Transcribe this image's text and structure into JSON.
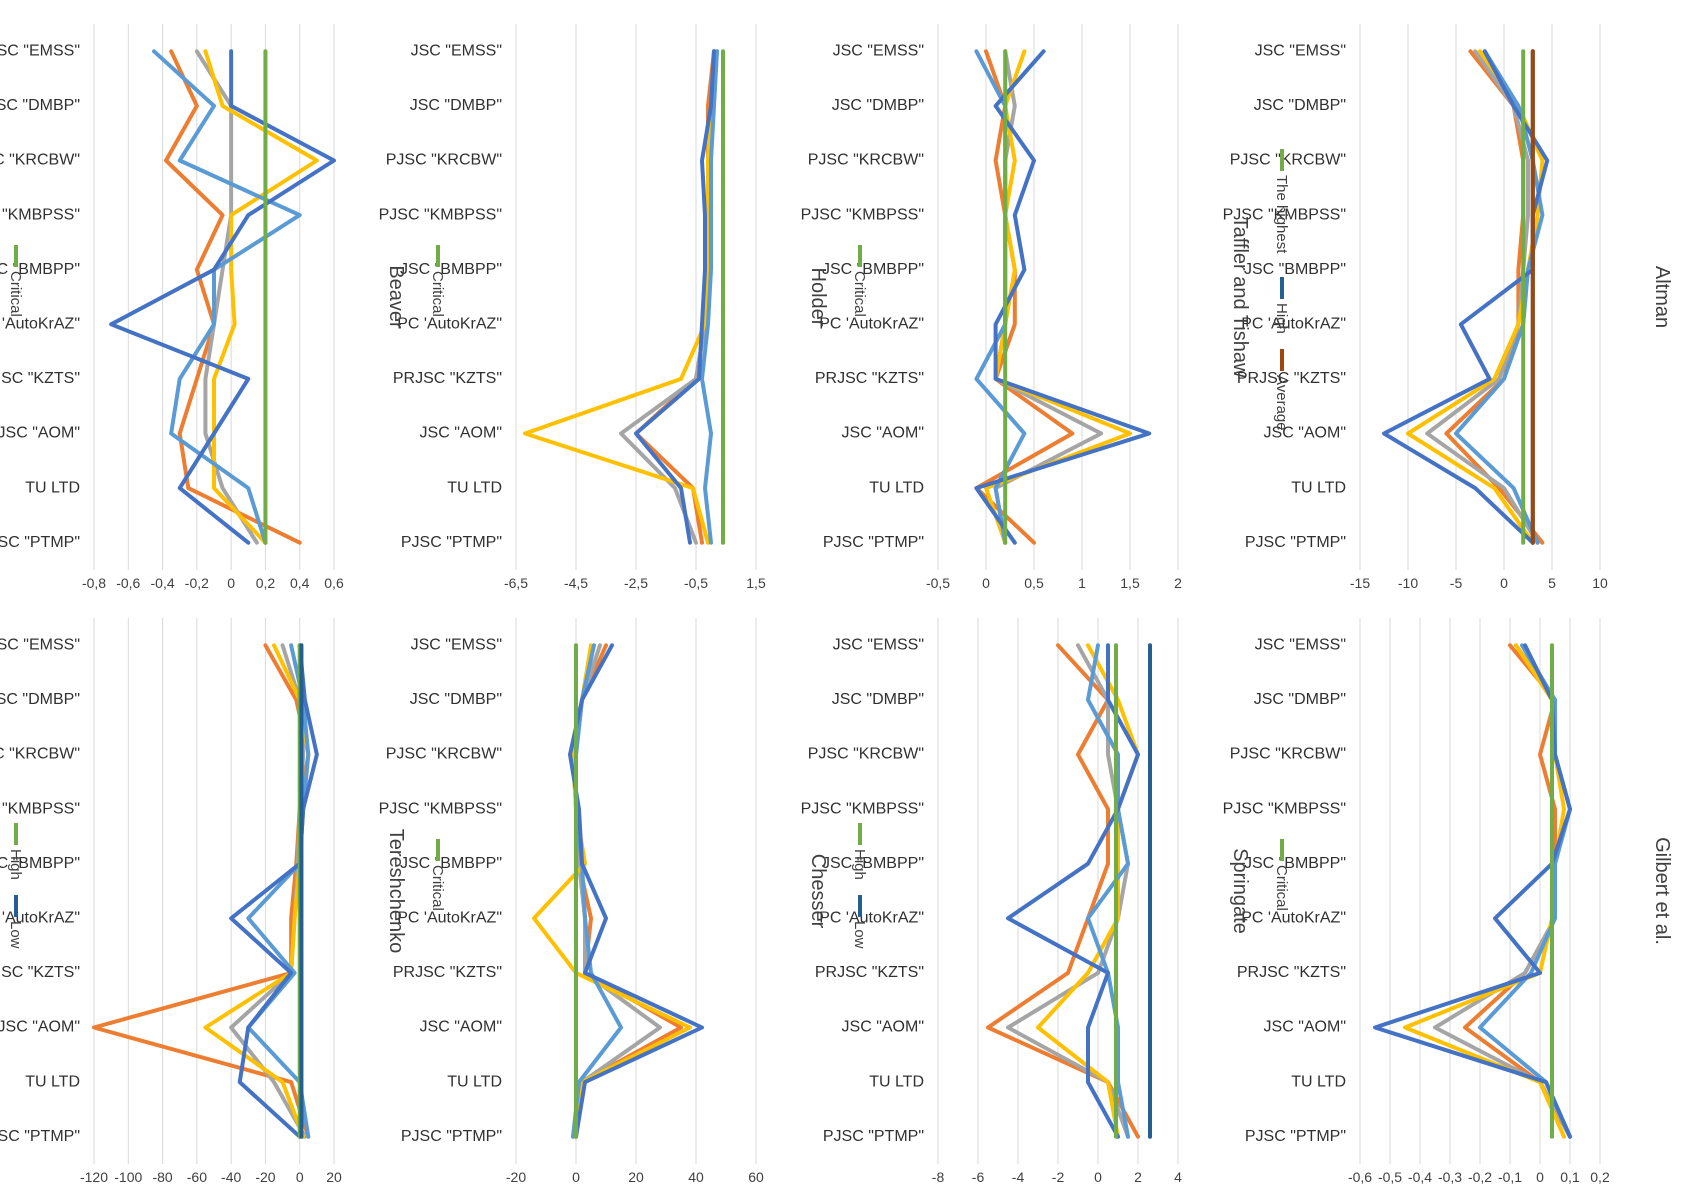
{
  "chart_data": [
    {
      "type": "line",
      "title": "Altman",
      "categories": [
        "JSC \"EMSS\"",
        "JSC \"DMBP\"",
        "PJSC \"KRCBW\"",
        "PJSC \"KMBPSS\"",
        "JSC \"BMBPP\"",
        "PC 'AutoKrAZ\"",
        "PRJSC \"KZTS\"",
        "JSC \"AOM\"",
        "TU LTD",
        "PJSC \"PTMP\""
      ],
      "ylim": [
        -15,
        10
      ],
      "ticks": [
        "-15",
        "-10",
        "-5",
        "0",
        "5",
        "10"
      ],
      "legend": [
        "The highest",
        "High",
        "Average"
      ],
      "series": [
        {
          "name": "The highest",
          "color": "#70ad47",
          "values": [
            2,
            2,
            2,
            2,
            2,
            2,
            2,
            2,
            2,
            2
          ]
        },
        {
          "name": "High",
          "color": "#255e91",
          "values": [
            3,
            3,
            3,
            3,
            3,
            3,
            3,
            3,
            3,
            3
          ]
        },
        {
          "name": "Average",
          "color": "#9e480e",
          "values": [
            3,
            3,
            3,
            3,
            3,
            3,
            3,
            3,
            3,
            3
          ]
        },
        {
          "color": "#ed7d31",
          "values": [
            -3.5,
            1,
            2,
            2,
            1.5,
            1.5,
            0,
            -6,
            -0.5,
            4
          ]
        },
        {
          "color": "#a5a5a5",
          "values": [
            -3,
            1,
            2.5,
            2.5,
            2,
            1.5,
            -0.5,
            -8,
            0,
            3.5
          ]
        },
        {
          "color": "#ffc000",
          "values": [
            -2.5,
            1.5,
            4,
            3.5,
            2.5,
            1.5,
            -1,
            -10,
            -1,
            3
          ]
        },
        {
          "color": "#5b9bd5",
          "values": [
            -2,
            1.5,
            3,
            4,
            2.5,
            2,
            0,
            -5,
            1,
            3.5
          ]
        },
        {
          "color": "#4472c4",
          "values": [
            -2,
            1,
            4.5,
            3,
            3,
            -4.5,
            -1.5,
            -12.5,
            -3,
            3
          ]
        }
      ]
    },
    {
      "type": "line",
      "title": "Taffler and Tishaw",
      "categories": [
        "JSC \"EMSS\"",
        "JSC \"DMBP\"",
        "PJSC \"KRCBW\"",
        "PJSC \"KMBPSS\"",
        "JSC \"BMBPP\"",
        "PC 'AutoKrAZ\"",
        "PRJSC \"KZTS\"",
        "JSC \"AOM\"",
        "TU LTD",
        "PJSC \"PTMP\""
      ],
      "ylim": [
        -0.5,
        2
      ],
      "ticks": [
        "-0,5",
        "0",
        "0,5",
        "1",
        "1,5",
        "2"
      ],
      "legend": [
        "Critical"
      ],
      "series": [
        {
          "name": "Critical",
          "color": "#70ad47",
          "values": [
            0.2,
            0.2,
            0.2,
            0.2,
            0.2,
            0.2,
            0.2,
            0.2,
            0.2,
            0.2
          ]
        },
        {
          "color": "#ed7d31",
          "values": [
            0,
            0.2,
            0.1,
            0.2,
            0.3,
            0.3,
            0.1,
            0.9,
            -0.1,
            0.5
          ]
        },
        {
          "color": "#a5a5a5",
          "values": [
            0.2,
            0.3,
            0.2,
            0.2,
            0.2,
            0.2,
            0.1,
            1.2,
            0.1,
            0.2
          ]
        },
        {
          "color": "#ffc000",
          "values": [
            0.4,
            0.2,
            0.3,
            0.2,
            0.3,
            0.2,
            0.1,
            1.5,
            0,
            0.2
          ]
        },
        {
          "color": "#5b9bd5",
          "values": [
            -0.1,
            0.2,
            0.2,
            0.2,
            0.2,
            0.2,
            -0.1,
            0.4,
            0.1,
            0.2
          ]
        },
        {
          "color": "#4472c4",
          "values": [
            0.6,
            0.1,
            0.5,
            0.3,
            0.4,
            0.1,
            0.1,
            1.7,
            -0.1,
            0.3
          ]
        }
      ]
    },
    {
      "type": "line",
      "title": "Holder",
      "categories": [
        "JSC \"EMSS\"",
        "JSC \"DMBP\"",
        "PJSC \"KRCBW\"",
        "PJSC \"KMBPSS\"",
        "JSC \"BMBPP\"",
        "PC 'AutoKrAZ\"",
        "PRJSC \"KZTS\"",
        "JSC \"AOM\"",
        "TU LTD",
        "PJSC \"PTMP\""
      ],
      "ylim": [
        -6.5,
        1.5
      ],
      "ticks": [
        "-6,5",
        "-4,5",
        "-2,5",
        "-0,5",
        "1,5"
      ],
      "legend": [
        "Critical"
      ],
      "series": [
        {
          "name": "Critical",
          "color": "#70ad47",
          "values": [
            0.4,
            0.4,
            0.4,
            0.4,
            0.4,
            0.4,
            0.4,
            0.4,
            0.4,
            0.4
          ]
        },
        {
          "color": "#ed7d31",
          "values": [
            0.1,
            -0.1,
            -0.1,
            -0.1,
            -0.1,
            -0.2,
            -0.5,
            -2.5,
            -0.6,
            -0.3
          ]
        },
        {
          "color": "#a5a5a5",
          "values": [
            0.1,
            0,
            -0.1,
            -0.1,
            -0.1,
            -0.2,
            -0.5,
            -3,
            -1.2,
            -0.5
          ]
        },
        {
          "color": "#ffc000",
          "values": [
            0.2,
            0,
            -0.1,
            -0.1,
            -0.1,
            -0.2,
            -1,
            -6.2,
            -0.6,
            -0.1
          ]
        },
        {
          "color": "#5b9bd5",
          "values": [
            0.2,
            0.1,
            0,
            0,
            0,
            -0.1,
            -0.3,
            0,
            -0.2,
            0
          ]
        },
        {
          "color": "#4472c4",
          "values": [
            0.1,
            0,
            -0.3,
            -0.2,
            -0.2,
            -0.3,
            -0.4,
            -2.5,
            -1,
            -0.7
          ]
        }
      ]
    },
    {
      "type": "line",
      "title": "Beaver",
      "categories": [
        "JSC \"EMSS\"",
        "JSC \"DMBP\"",
        "PJSC \"KRCBW\"",
        "PJSC \"KMBPSS\"",
        "JSC \"BMBPP\"",
        "PC 'AutoKrAZ\"",
        "PRJSC \"KZTS\"",
        "JSC \"AOM\"",
        "TU LTD",
        "PJSC \"PTMP\""
      ],
      "ylim": [
        -0.8,
        0.6
      ],
      "ticks": [
        "-0,8",
        "-0,6",
        "-0,4",
        "-0,2",
        "0",
        "0,2",
        "0,4",
        "0,6"
      ],
      "legend": [
        "Critical"
      ],
      "series": [
        {
          "name": "Critical",
          "color": "#70ad47",
          "values": [
            0.2,
            0.2,
            0.2,
            0.2,
            0.2,
            0.2,
            0.2,
            0.2,
            0.2,
            0.2
          ]
        },
        {
          "color": "#ed7d31",
          "values": [
            -0.35,
            -0.2,
            -0.38,
            -0.05,
            -0.2,
            -0.1,
            -0.2,
            -0.3,
            -0.25,
            0.4
          ]
        },
        {
          "color": "#a5a5a5",
          "values": [
            -0.2,
            0,
            0,
            0,
            -0.05,
            -0.1,
            -0.15,
            -0.15,
            -0.05,
            0.15
          ]
        },
        {
          "color": "#ffc000",
          "values": [
            -0.15,
            -0.05,
            0.5,
            0,
            0,
            0.02,
            -0.1,
            -0.1,
            -0.1,
            0.2
          ]
        },
        {
          "color": "#5b9bd5",
          "values": [
            -0.45,
            -0.1,
            -0.3,
            0.4,
            -0.1,
            -0.1,
            -0.3,
            -0.35,
            0.1,
            0.2
          ]
        },
        {
          "color": "#4472c4",
          "values": [
            0,
            0,
            0.6,
            0.1,
            -0.1,
            -0.7,
            0.1,
            -0.1,
            -0.3,
            0.1
          ]
        }
      ]
    },
    {
      "type": "line",
      "title": "Gilbert et al.",
      "categories": [
        "JSC \"EMSS\"",
        "JSC \"DMBP\"",
        "PJSC \"KRCBW\"",
        "PJSC \"KMBPSS\"",
        "JSC \"BMBPP\"",
        "PC 'AutoKrAZ\"",
        "PRJSC \"KZTS\"",
        "JSC \"AOM\"",
        "TU LTD",
        "PJSC \"PTMP\""
      ],
      "ylim": [
        -0.6,
        0.2
      ],
      "ticks": [
        "-0,6",
        "-0,5",
        "-0,4",
        "-0,3",
        "-0,2",
        "-0,1",
        "0",
        "0,1",
        "0,2"
      ],
      "legend": [
        "Critical"
      ],
      "series": [
        {
          "name": "Critical",
          "color": "#70ad47",
          "values": [
            0.04,
            0.04,
            0.04,
            0.04,
            0.04,
            0.04,
            0.04,
            0.04,
            0.04,
            0.04
          ]
        },
        {
          "color": "#ed7d31",
          "values": [
            -0.1,
            0.05,
            0,
            0.05,
            0.05,
            0.05,
            -0.05,
            -0.25,
            0,
            0.1
          ]
        },
        {
          "color": "#a5a5a5",
          "values": [
            -0.08,
            0.05,
            0.05,
            0.1,
            0.05,
            0.05,
            -0.05,
            -0.35,
            0,
            0.1
          ]
        },
        {
          "color": "#ffc000",
          "values": [
            -0.08,
            0.04,
            0.05,
            0.08,
            0.05,
            0.04,
            0,
            -0.45,
            0,
            0.08
          ]
        },
        {
          "color": "#5b9bd5",
          "values": [
            -0.06,
            0.05,
            0.05,
            0.1,
            0.05,
            0.05,
            -0.03,
            -0.2,
            0.02,
            0.1
          ]
        },
        {
          "color": "#4472c4",
          "values": [
            -0.05,
            0.04,
            0.05,
            0.1,
            0.04,
            -0.15,
            0,
            -0.55,
            0.02,
            0.1
          ]
        }
      ]
    },
    {
      "type": "line",
      "title": "Springate",
      "categories": [
        "JSC \"EMSS\"",
        "JSC \"DMBP\"",
        "PJSC \"KRCBW\"",
        "PJSC \"KMBPSS\"",
        "JSC \"BMBPP\"",
        "PC 'AutoKrAZ\"",
        "PRJSC \"KZTS\"",
        "JSC \"AOM\"",
        "TU LTD",
        "PJSC \"PTMP\""
      ],
      "ylim": [
        -8,
        4
      ],
      "ticks": [
        "-8",
        "-6",
        "-4",
        "-2",
        "0",
        "2",
        "4"
      ],
      "legend": [
        "High",
        "Low"
      ],
      "series": [
        {
          "name": "High",
          "color": "#70ad47",
          "values": [
            0.9,
            0.9,
            0.9,
            0.9,
            0.9,
            0.9,
            0.9,
            0.9,
            0.9,
            0.9
          ]
        },
        {
          "name": "Low",
          "color": "#255e91",
          "values": [
            2.6,
            2.6,
            2.6,
            2.6,
            2.6,
            2.6,
            2.6,
            2.6,
            2.6,
            2.6
          ]
        },
        {
          "color": "#ed7d31",
          "values": [
            -2,
            0.5,
            -1,
            0.5,
            0.5,
            -0.5,
            -1.5,
            -5.5,
            0.5,
            2
          ]
        },
        {
          "color": "#a5a5a5",
          "values": [
            -1,
            0.5,
            0.5,
            1,
            1.5,
            1,
            0,
            -4.5,
            0.5,
            1.5
          ]
        },
        {
          "color": "#ffc000",
          "values": [
            -0.5,
            1,
            2,
            1,
            1,
            1,
            -0.5,
            -3,
            0.5,
            1
          ]
        },
        {
          "color": "#5b9bd5",
          "values": [
            0,
            -0.5,
            1,
            1,
            1.5,
            -0.5,
            0.5,
            1,
            1,
            1.5
          ]
        },
        {
          "color": "#4472c4",
          "values": [
            0.5,
            0.5,
            2,
            1,
            -0.5,
            -4.5,
            0.5,
            -0.5,
            -0.5,
            1
          ]
        }
      ]
    },
    {
      "type": "line",
      "title": "Chesser",
      "categories": [
        "JSC \"EMSS\"",
        "JSC \"DMBP\"",
        "PJSC \"KRCBW\"",
        "PJSC \"KMBPSS\"",
        "JSC \"BMBPP\"",
        "PC 'AutoKrAZ\"",
        "PRJSC \"KZTS\"",
        "JSC \"AOM\"",
        "TU LTD",
        "PJSC \"PTMP\""
      ],
      "ylim": [
        -20,
        60
      ],
      "ticks": [
        "-20",
        "0",
        "20",
        "40",
        "60"
      ],
      "legend": [
        "Critical"
      ],
      "series": [
        {
          "name": "Critical",
          "color": "#70ad47",
          "values": [
            0,
            0,
            0,
            0,
            0,
            0,
            0,
            0,
            0,
            0
          ]
        },
        {
          "color": "#ed7d31",
          "values": [
            10,
            2,
            -1,
            0,
            1,
            5,
            3,
            35,
            2,
            0
          ]
        },
        {
          "color": "#a5a5a5",
          "values": [
            8,
            2,
            0,
            0,
            1,
            3,
            3,
            28,
            2,
            -1
          ]
        },
        {
          "color": "#ffc000",
          "values": [
            5,
            2,
            -1,
            0,
            3,
            -14,
            0,
            38,
            2,
            0
          ]
        },
        {
          "color": "#5b9bd5",
          "values": [
            6,
            2,
            0,
            0,
            2,
            3,
            5,
            15,
            1,
            -1
          ]
        },
        {
          "color": "#4472c4",
          "values": [
            12,
            2,
            -2,
            1,
            2,
            10,
            3,
            42,
            3,
            0
          ]
        }
      ]
    },
    {
      "type": "line",
      "title": "Tereshchenko",
      "categories": [
        "JSC \"EMSS\"",
        "JSC \"DMBP\"",
        "PJSC \"KRCBW\"",
        "PJSC \"KMBPSS\"",
        "JSC \"BMBPP\"",
        "PC 'AutoKrAZ\"",
        "PRJSC \"KZTS\"",
        "JSC \"AOM\"",
        "TU LTD",
        "PJSC \"PTMP\""
      ],
      "ylim": [
        -120,
        20
      ],
      "ticks": [
        "-120",
        "-100",
        "-80",
        "-60",
        "-40",
        "-20",
        "0",
        "20"
      ],
      "legend": [
        "High",
        "Low"
      ],
      "series": [
        {
          "name": "High",
          "color": "#70ad47",
          "values": [
            0,
            0,
            0,
            0,
            0,
            0,
            0,
            0,
            0,
            0
          ]
        },
        {
          "name": "Low",
          "color": "#255e91",
          "values": [
            1,
            1,
            1,
            1,
            1,
            1,
            1,
            1,
            1,
            1
          ]
        },
        {
          "color": "#ed7d31",
          "values": [
            -20,
            -2,
            5,
            0,
            -2,
            -5,
            -5,
            -120,
            -5,
            5
          ]
        },
        {
          "color": "#a5a5a5",
          "values": [
            -10,
            0,
            2,
            0,
            -1,
            -3,
            -5,
            -40,
            -15,
            3
          ]
        },
        {
          "color": "#ffc000",
          "values": [
            -15,
            0,
            5,
            2,
            0,
            -3,
            -5,
            -55,
            -10,
            2
          ]
        },
        {
          "color": "#5b9bd5",
          "values": [
            -5,
            2,
            5,
            2,
            0,
            -30,
            -3,
            -30,
            0,
            5
          ]
        },
        {
          "color": "#4472c4",
          "values": [
            0,
            3,
            10,
            2,
            0,
            -40,
            -5,
            -30,
            -35,
            0
          ]
        }
      ]
    }
  ]
}
